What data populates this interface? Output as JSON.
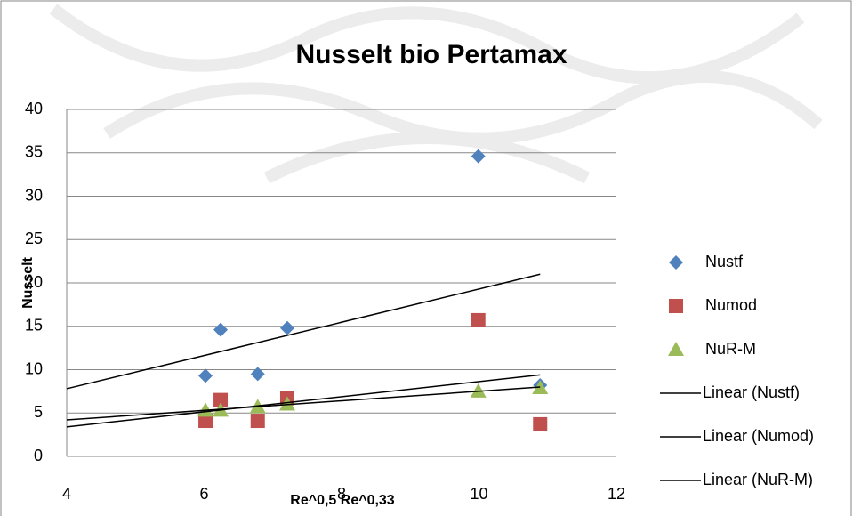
{
  "chart_data": {
    "type": "scatter",
    "title": "Nusselt bio Pertamax",
    "x_label": "Re^0,5 Re^0,33",
    "y_label": "Nusselt",
    "xlim": [
      4,
      12
    ],
    "xticks": [
      4,
      6,
      8,
      10,
      12
    ],
    "ylim": [
      0,
      40
    ],
    "yticks": [
      0,
      5,
      10,
      15,
      20,
      25,
      30,
      35,
      40
    ],
    "grid": true,
    "series": [
      {
        "name": "Nustf",
        "color": "#4f81bd",
        "marker": "diamond",
        "x": [
          6.02,
          6.24,
          6.78,
          7.21,
          9.99,
          10.89
        ],
        "values": [
          9.3,
          14.6,
          9.5,
          14.8,
          34.6,
          8.2
        ]
      },
      {
        "name": "Numod",
        "color": "#c0504d",
        "marker": "square",
        "x": [
          6.02,
          6.24,
          6.78,
          7.21,
          9.99,
          10.89
        ],
        "values": [
          4.1,
          6.5,
          4.1,
          6.7,
          15.7,
          3.7
        ]
      },
      {
        "name": "NuR-M",
        "color": "#9bbb59",
        "marker": "triangle",
        "x": [
          6.02,
          6.24,
          6.78,
          7.21,
          9.99,
          10.89
        ],
        "values": [
          5.3,
          5.3,
          5.7,
          6.0,
          7.5,
          7.9
        ]
      },
      {
        "name": "Linear (Nustf)",
        "color": "#000000",
        "marker": "line",
        "x": [
          4,
          10.89
        ],
        "values": [
          7.8,
          21.0
        ]
      },
      {
        "name": "Linear (Numod)",
        "color": "#000000",
        "marker": "line",
        "x": [
          4,
          10.89
        ],
        "values": [
          3.4,
          9.4
        ]
      },
      {
        "name": "Linear (NuR-M)",
        "color": "#000000",
        "marker": "line",
        "x": [
          4,
          10.89
        ],
        "values": [
          4.2,
          8.0
        ]
      }
    ]
  }
}
